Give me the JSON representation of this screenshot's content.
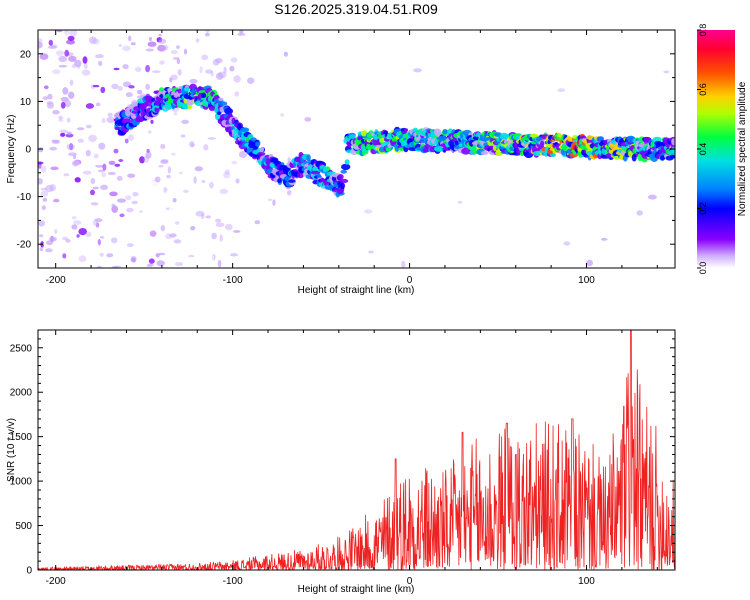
{
  "title": "S126.2025.319.04.51.R09",
  "chart_data": [
    {
      "type": "heatmap",
      "title": "S126.2025.319.04.51.R09",
      "xlabel": "Height of straight line (km)",
      "ylabel": "Frequency (Hz)",
      "xlim": [
        -210,
        150
      ],
      "ylim": [
        -25,
        25
      ],
      "xticks": [
        -200,
        -100,
        0,
        100
      ],
      "yticks": [
        -20,
        -10,
        0,
        10,
        20
      ],
      "colorbar": {
        "label": "Normalized spectral amplitude",
        "range": [
          0.0,
          0.8
        ],
        "ticks": [
          "0.0",
          "0.2",
          "0.4",
          "0.6",
          "0.8"
        ],
        "colormap": [
          "#ffffff",
          "#c8a8ff",
          "#8000ff",
          "#0000ff",
          "#0080ff",
          "#00e0e0",
          "#00ff40",
          "#c0ff00",
          "#ffd000",
          "#ff5000",
          "#ff0040",
          "#ff0090"
        ]
      },
      "signal_track": [
        {
          "x": -165,
          "y": 5,
          "a": 0.3
        },
        {
          "x": -140,
          "y": 10.5,
          "a": 0.4
        },
        {
          "x": -123,
          "y": 11,
          "a": 0.55
        },
        {
          "x": -113,
          "y": 11,
          "a": 0.45
        },
        {
          "x": -100,
          "y": 5,
          "a": 0.35
        },
        {
          "x": -90,
          "y": 1,
          "a": 0.4
        },
        {
          "x": -80,
          "y": -3,
          "a": 0.35
        },
        {
          "x": -70,
          "y": -6,
          "a": 0.3
        },
        {
          "x": -60,
          "y": -3,
          "a": 0.35
        },
        {
          "x": -48,
          "y": -6,
          "a": 0.4
        },
        {
          "x": -38,
          "y": -8,
          "a": 0.3
        },
        {
          "x": -35,
          "y": 1,
          "a": 0.4
        },
        {
          "x": -22,
          "y": 1.5,
          "a": 0.55
        },
        {
          "x": 0,
          "y": 2,
          "a": 0.45
        },
        {
          "x": 30,
          "y": 1.5,
          "a": 0.45
        },
        {
          "x": 60,
          "y": 1,
          "a": 0.55
        },
        {
          "x": 95,
          "y": 0.5,
          "a": 0.7
        },
        {
          "x": 130,
          "y": 0,
          "a": 0.5
        },
        {
          "x": 150,
          "y": 0,
          "a": 0.4
        }
      ]
    },
    {
      "type": "line",
      "xlabel": "Height of straight line (km)",
      "ylabel": "SNR (10 * v/v)",
      "xlim": [
        -210,
        150
      ],
      "ylim": [
        0,
        2700
      ],
      "xticks": [
        -200,
        -100,
        0,
        100
      ],
      "yticks": [
        0,
        500,
        1000,
        1500,
        2000,
        2500
      ],
      "series_color": "#ee2222",
      "envelope_x": [
        -210,
        -150,
        -120,
        -100,
        -80,
        -60,
        -40,
        -20,
        0,
        20,
        40,
        60,
        80,
        100,
        110,
        120,
        125,
        130,
        140,
        150
      ],
      "envelope_y": [
        30,
        60,
        80,
        110,
        180,
        240,
        380,
        700,
        1250,
        1150,
        1550,
        1650,
        1700,
        1550,
        1200,
        1900,
        2700,
        2100,
        1600,
        1000
      ],
      "peaks": [
        {
          "x": -8,
          "y": 1250
        },
        {
          "x": 30,
          "y": 1550
        },
        {
          "x": 55,
          "y": 1650
        },
        {
          "x": 92,
          "y": 1700
        },
        {
          "x": 125,
          "y": 2700
        }
      ]
    }
  ]
}
